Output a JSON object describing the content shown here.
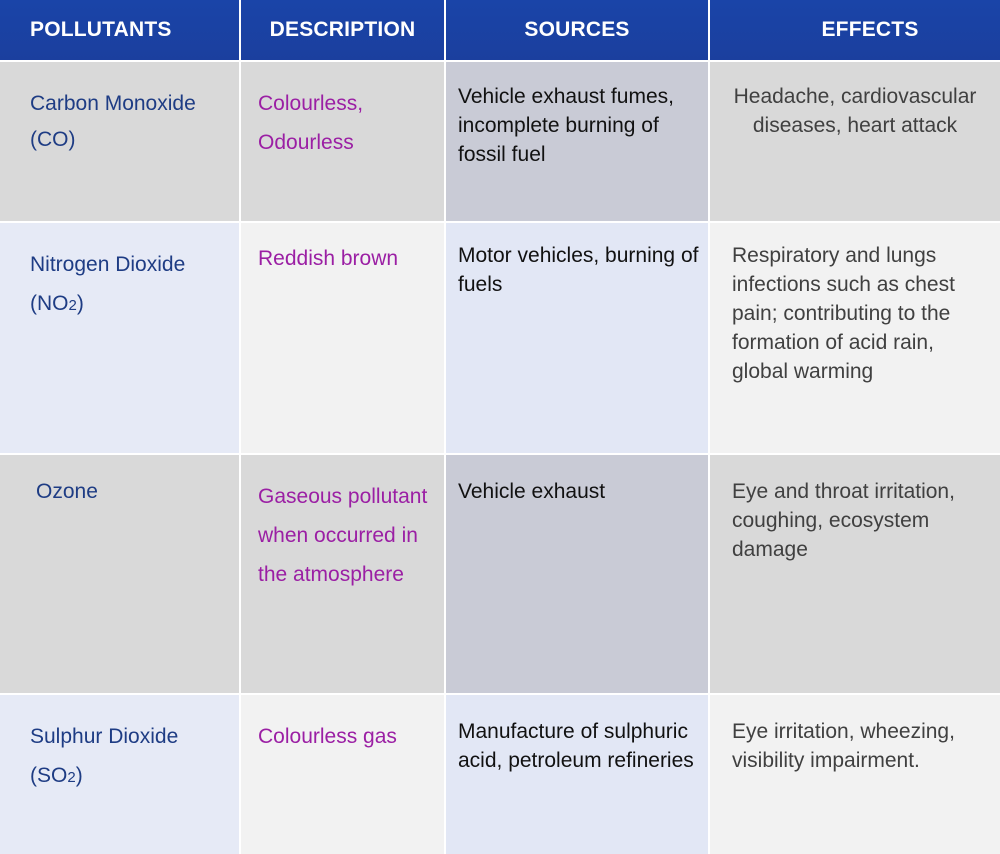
{
  "headers": {
    "pollutants": "POLLUTANTS",
    "description": "DESCRIPTION",
    "sources": "SOURCES",
    "effects": "EFFECTS"
  },
  "rows": [
    {
      "pollutant_name": "Carbon Monoxide",
      "pollutant_formula": "(CO)",
      "pollutant_formula_sub": "",
      "pollutant_formula_end": "",
      "description": "Colourless, Odourless",
      "sources": "Vehicle exhaust fumes, incomplete burning of fossil fuel",
      "effects": "Headache, cardiovascular diseases, heart attack"
    },
    {
      "pollutant_name": "Nitrogen Dioxide",
      "pollutant_formula": "(NO",
      "pollutant_formula_sub": "2",
      "pollutant_formula_end": ")",
      "description": "Reddish brown",
      "sources": "Motor vehicles, burning of fuels",
      "effects": "Respiratory and lungs infections such as chest pain; contributing  to the formation of acid rain, global warming"
    },
    {
      "pollutant_name": "Ozone",
      "pollutant_formula": "",
      "pollutant_formula_sub": "",
      "pollutant_formula_end": "",
      "description": "Gaseous pollutant when occurred in the atmosphere",
      "sources": "Vehicle exhaust",
      "effects": "Eye and throat irritation, coughing, ecosystem damage"
    },
    {
      "pollutant_name": "Sulphur Dioxide",
      "pollutant_formula": "(SO",
      "pollutant_formula_sub": "2",
      "pollutant_formula_end": ")",
      "description": "Colourless gas",
      "sources": "Manufacture of sulphuric acid, petroleum refineries",
      "effects": "Eye irritation, wheezing, visibility impairment."
    }
  ],
  "colors": {
    "header_bg": "#1b3f9e",
    "pollutant_text": "#1e3c84",
    "description_text": "#9b1fa4",
    "sources_text": "#111111",
    "effects_text": "#404040"
  }
}
